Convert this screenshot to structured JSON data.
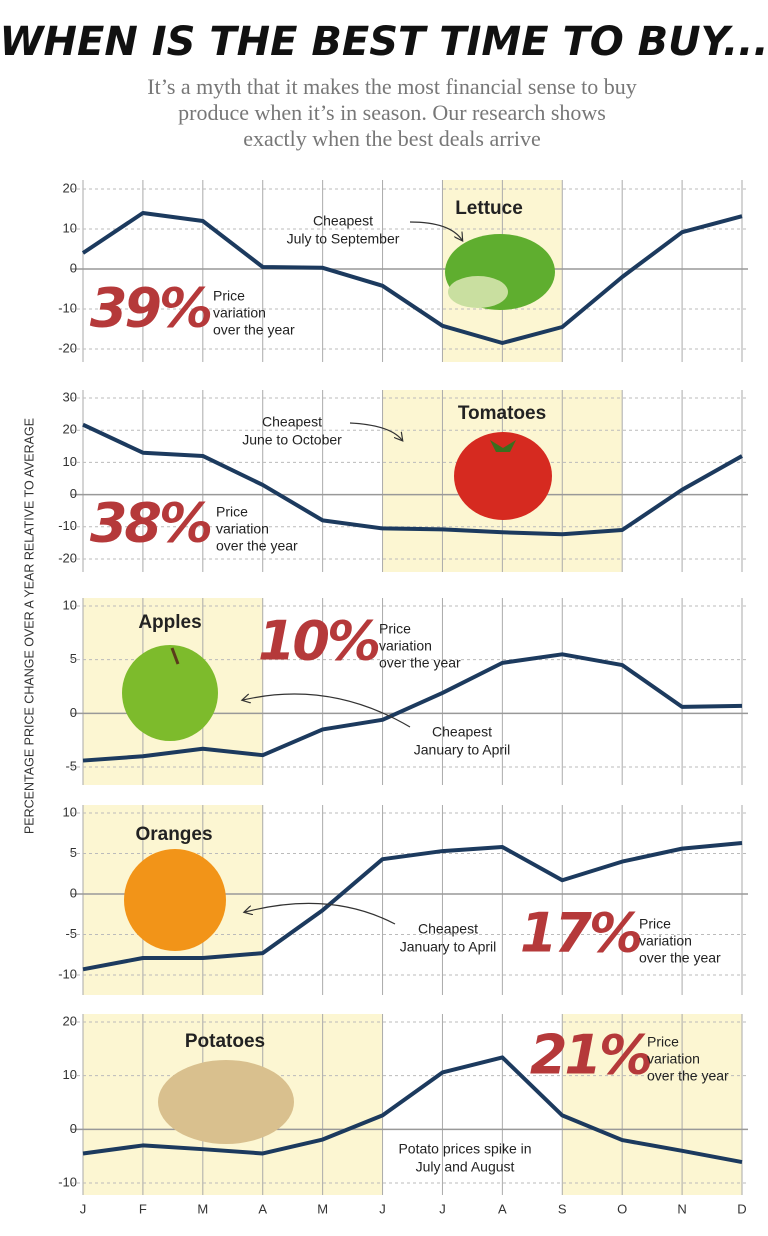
{
  "title": "WHEN IS THE BEST TIME TO BUY...",
  "subtitle": [
    "It’s a myth that it makes the most financial sense to buy",
    "produce when it’s in season. Our research shows",
    "exactly when the best deals arrive"
  ],
  "y_axis_label": "PERCENTAGE PRICE CHANGE OVER A YEAR RELATIVE TO AVERAGE",
  "chart_data": [
    {
      "type": "line",
      "title": "Lettuce",
      "annotation": [
        "Cheapest",
        "July to September"
      ],
      "variation": "39%",
      "variation_note": [
        "Price",
        "variation",
        "over the year"
      ],
      "highlight_months": [
        [
          6,
          8
        ]
      ],
      "color": "#1c3a5e",
      "ylim": [
        -20,
        20
      ],
      "yticks": [
        -20,
        -10,
        0,
        10,
        20
      ],
      "values": [
        4,
        14,
        12,
        0.5,
        0.3,
        -4.2,
        -14.2,
        -18.5,
        -14.5,
        -2,
        9.2,
        13.2
      ]
    },
    {
      "type": "line",
      "title": "Tomatoes",
      "annotation": [
        "Cheapest",
        "June to October"
      ],
      "variation": "38%",
      "variation_note": [
        "Price",
        "variation",
        "over the year"
      ],
      "highlight_months": [
        [
          5,
          9
        ]
      ],
      "color": "#1c3a5e",
      "ylim": [
        -20,
        30
      ],
      "yticks": [
        -20,
        -10,
        0,
        10,
        20,
        30
      ],
      "values": [
        21.7,
        13,
        12,
        3,
        -8,
        -10.5,
        -10.8,
        -11.7,
        -12.3,
        -11,
        1.5,
        12
      ]
    },
    {
      "type": "line",
      "title": "Apples",
      "annotation": [
        "Cheapest",
        "January to April"
      ],
      "variation": "10%",
      "variation_note": [
        "Price",
        "variation",
        "over the year"
      ],
      "highlight_months": [
        [
          0,
          3
        ]
      ],
      "color": "#1c3a5e",
      "ylim": [
        -5,
        10
      ],
      "yticks": [
        -5,
        0,
        5,
        10
      ],
      "values": [
        -4.4,
        -4,
        -3.3,
        -3.9,
        -1.5,
        -0.6,
        1.9,
        4.7,
        5.5,
        4.5,
        0.6,
        0.7
      ]
    },
    {
      "type": "line",
      "title": "Oranges",
      "annotation": [
        "Cheapest",
        "January to April"
      ],
      "variation": "17%",
      "variation_note": [
        "Price",
        "variation",
        "over the year"
      ],
      "highlight_months": [
        [
          0,
          3
        ]
      ],
      "color": "#1c3a5e",
      "ylim": [
        -10,
        10
      ],
      "yticks": [
        -10,
        -5,
        0,
        5,
        10
      ],
      "values": [
        -9.3,
        -7.9,
        -7.9,
        -7.3,
        -2,
        4.3,
        5.3,
        5.8,
        1.7,
        4,
        5.6,
        6.3
      ]
    },
    {
      "type": "line",
      "title": "Potatoes",
      "annotation": [
        "Potato prices spike in",
        "July and August"
      ],
      "variation": "21%",
      "variation_note": [
        "Price",
        "variation",
        "over the year"
      ],
      "highlight_months": [
        [
          0,
          5
        ],
        [
          8,
          11
        ]
      ],
      "color": "#1c3a5e",
      "ylim": [
        -10,
        20
      ],
      "yticks": [
        -10,
        0,
        10,
        20
      ],
      "categories": [
        "J",
        "F",
        "M",
        "A",
        "M",
        "J",
        "J",
        "A",
        "S",
        "O",
        "N",
        "D"
      ],
      "values": [
        -4.5,
        -3,
        -3.7,
        -4.5,
        -1.9,
        2.6,
        10.6,
        13.4,
        2.6,
        -2,
        -4,
        -6.1
      ]
    }
  ]
}
